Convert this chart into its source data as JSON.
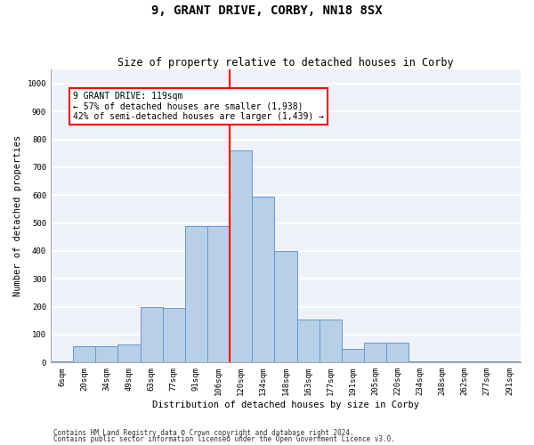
{
  "title": "9, GRANT DRIVE, CORBY, NN18 8SX",
  "subtitle": "Size of property relative to detached houses in Corby",
  "xlabel": "Distribution of detached houses by size in Corby",
  "ylabel": "Number of detached properties",
  "categories": [
    "6sqm",
    "20sqm",
    "34sqm",
    "49sqm",
    "63sqm",
    "77sqm",
    "91sqm",
    "106sqm",
    "120sqm",
    "134sqm",
    "148sqm",
    "163sqm",
    "177sqm",
    "191sqm",
    "205sqm",
    "220sqm",
    "234sqm",
    "248sqm",
    "262sqm",
    "277sqm",
    "291sqm"
  ],
  "values": [
    5,
    60,
    60,
    65,
    200,
    195,
    490,
    490,
    760,
    595,
    400,
    155,
    155,
    50,
    70,
    70,
    5,
    5,
    5,
    5,
    5
  ],
  "bar_color": "#b8cfe8",
  "bar_edge_color": "#6699cc",
  "vline_color": "red",
  "vline_index": 8.5,
  "annotation_text": "9 GRANT DRIVE: 119sqm\n← 57% of detached houses are smaller (1,938)\n42% of semi-detached houses are larger (1,439) →",
  "annotation_box_color": "white",
  "annotation_box_edge_color": "red",
  "ylim": [
    0,
    1050
  ],
  "yticks": [
    0,
    100,
    200,
    300,
    400,
    500,
    600,
    700,
    800,
    900,
    1000
  ],
  "footer1": "Contains HM Land Registry data © Crown copyright and database right 2024.",
  "footer2": "Contains public sector information licensed under the Open Government Licence v3.0.",
  "bg_color": "#eef2f8",
  "grid_color": "#ffffff",
  "title_fontsize": 10,
  "subtitle_fontsize": 8.5,
  "tick_fontsize": 6.5,
  "ylabel_fontsize": 7.5,
  "xlabel_fontsize": 7.5,
  "annotation_fontsize": 7,
  "footer_fontsize": 5.5
}
